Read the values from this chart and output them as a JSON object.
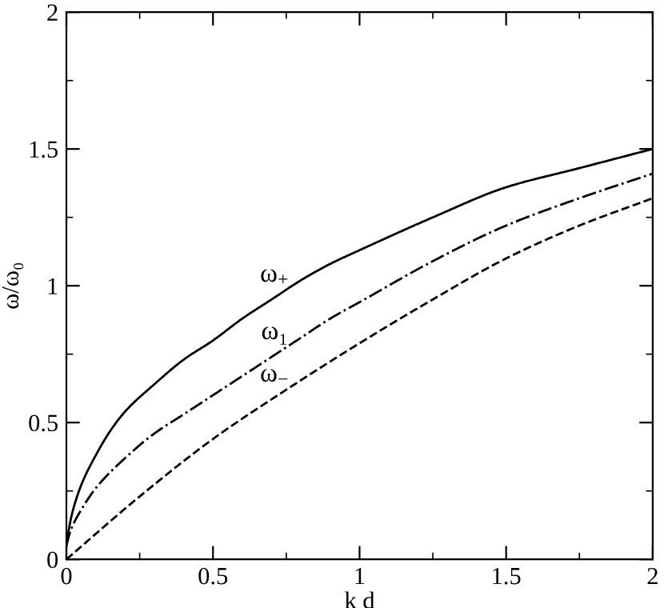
{
  "chart_data": {
    "type": "line",
    "xlabel": "k d",
    "ylabel": "ω/ω₀",
    "xlim": [
      0,
      2
    ],
    "ylim": [
      0,
      2
    ],
    "xticks": [
      0,
      {
        "value": 0.25,
        "label": null
      },
      0.5,
      {
        "value": 0.75,
        "label": null
      },
      1,
      {
        "value": 1.25,
        "label": null
      },
      1.5,
      {
        "value": 1.75,
        "label": null
      },
      2
    ],
    "yticks": [
      0,
      {
        "value": 0.25,
        "label": null
      },
      0.5,
      {
        "value": 0.75,
        "label": null
      },
      1,
      {
        "value": 1.25,
        "label": null
      },
      1.5,
      {
        "value": 1.75,
        "label": null
      },
      2
    ],
    "grid": false,
    "legend": false,
    "marker": "none",
    "series": [
      {
        "name": "ω$_{+}$",
        "color": "#000000",
        "line_style": "solid",
        "x": [
          0,
          0.01,
          0.02,
          0.05,
          0.1,
          0.15,
          0.2,
          0.3,
          0.4,
          0.5,
          0.6,
          0.7,
          0.8,
          0.9,
          1,
          1.25,
          1.5,
          1.75,
          2
        ],
        "values": [
          0.05,
          0.12,
          0.17,
          0.27,
          0.38,
          0.47,
          0.54,
          0.64,
          0.73,
          0.8,
          0.88,
          0.95,
          1.02,
          1.08,
          1.13,
          1.25,
          1.36,
          1.43,
          1.5
        ]
      },
      {
        "name": "ω₁",
        "color": "#000000",
        "line_style": "dashdot",
        "x": [
          0,
          0.01,
          0.02,
          0.05,
          0.1,
          0.2,
          0.3,
          0.4,
          0.5,
          0.6,
          0.7,
          0.8,
          0.9,
          1,
          1.25,
          1.5,
          1.75,
          2
        ],
        "values": [
          0.05,
          0.09,
          0.12,
          0.18,
          0.26,
          0.37,
          0.46,
          0.53,
          0.6,
          0.67,
          0.74,
          0.81,
          0.88,
          0.94,
          1.09,
          1.22,
          1.32,
          1.41
        ]
      },
      {
        "name": "ω$_{−}$",
        "color": "#000000",
        "line_style": "dashed",
        "x": [
          0,
          0.25,
          0.5,
          0.75,
          1,
          1.25,
          1.5,
          1.75,
          2
        ],
        "values": [
          0,
          0.23,
          0.44,
          0.62,
          0.79,
          0.95,
          1.1,
          1.22,
          1.32
        ]
      }
    ]
  }
}
